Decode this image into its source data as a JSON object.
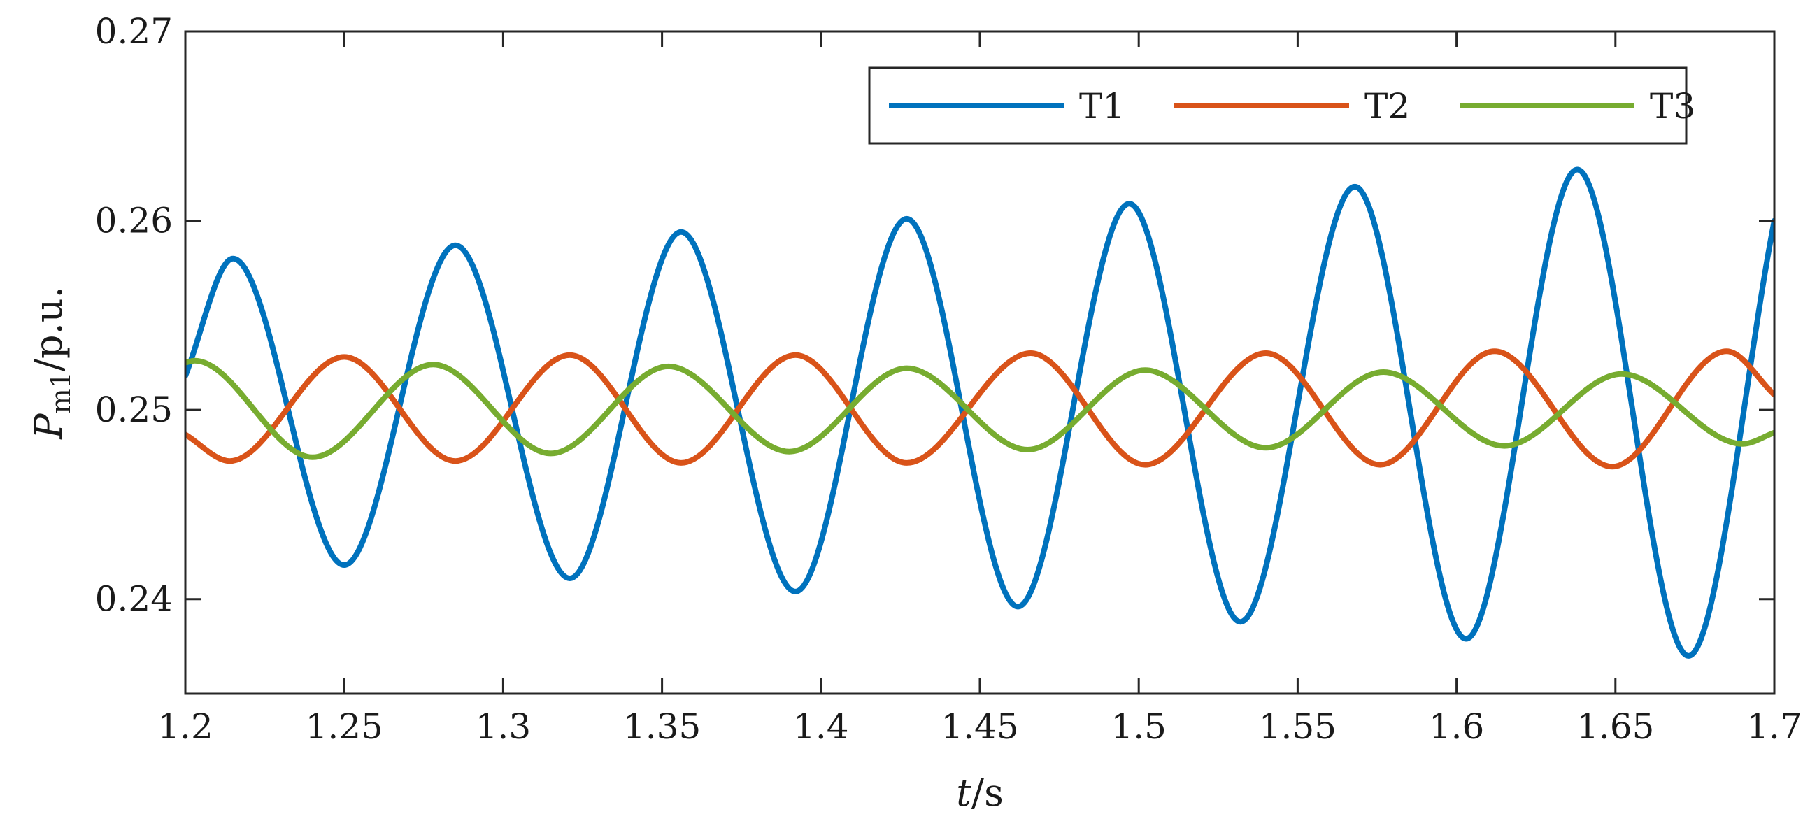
{
  "chart_data": {
    "type": "line",
    "xlabel": {
      "var": "t",
      "unit": "/s"
    },
    "ylabel": {
      "var": "P",
      "sub": "m1",
      "unit": "/p.u."
    },
    "xlim": [
      1.2,
      1.7
    ],
    "ylim": [
      0.235,
      0.27
    ],
    "xticks": [
      1.2,
      1.25,
      1.3,
      1.35,
      1.4,
      1.45,
      1.5,
      1.55,
      1.6,
      1.65,
      1.7
    ],
    "xtick_labels": [
      "1.2",
      "1.25",
      "1.3",
      "1.35",
      "1.4",
      "1.45",
      "1.5",
      "1.55",
      "1.6",
      "1.65",
      "1.7"
    ],
    "yticks": [
      0.24,
      0.25,
      0.26,
      0.27
    ],
    "ytick_labels": [
      "0.24",
      "0.25",
      "0.26",
      "0.27"
    ],
    "grid": false,
    "legend": {
      "placement": "top-right",
      "orientation": "horizontal"
    },
    "series": [
      {
        "name": "T1",
        "color": "#0072BD",
        "x": [
          1.2,
          1.215,
          1.25,
          1.285,
          1.321,
          1.356,
          1.392,
          1.427,
          1.462,
          1.497,
          1.532,
          1.568,
          1.603,
          1.638,
          1.673,
          1.7
        ],
        "y": [
          0.2518,
          0.258,
          0.2418,
          0.2587,
          0.2411,
          0.2594,
          0.2404,
          0.2601,
          0.2396,
          0.2609,
          0.2388,
          0.2618,
          0.2379,
          0.2627,
          0.237,
          0.26
        ]
      },
      {
        "name": "T2",
        "color": "#D95319",
        "x": [
          1.2,
          1.214,
          1.25,
          1.285,
          1.321,
          1.356,
          1.392,
          1.427,
          1.466,
          1.502,
          1.54,
          1.576,
          1.612,
          1.649,
          1.685,
          1.7
        ],
        "y": [
          0.2487,
          0.2473,
          0.2528,
          0.2473,
          0.2529,
          0.2472,
          0.2529,
          0.2472,
          0.253,
          0.2471,
          0.253,
          0.2471,
          0.2531,
          0.247,
          0.2531,
          0.2508
        ]
      },
      {
        "name": "T3",
        "color": "#77AC30",
        "x": [
          1.2,
          1.203,
          1.24,
          1.278,
          1.315,
          1.352,
          1.39,
          1.427,
          1.465,
          1.502,
          1.54,
          1.577,
          1.615,
          1.652,
          1.69,
          1.7
        ],
        "y": [
          0.2525,
          0.2526,
          0.2475,
          0.2524,
          0.2477,
          0.2523,
          0.2478,
          0.2522,
          0.2479,
          0.2521,
          0.248,
          0.252,
          0.2481,
          0.2519,
          0.2482,
          0.2488
        ]
      }
    ]
  }
}
